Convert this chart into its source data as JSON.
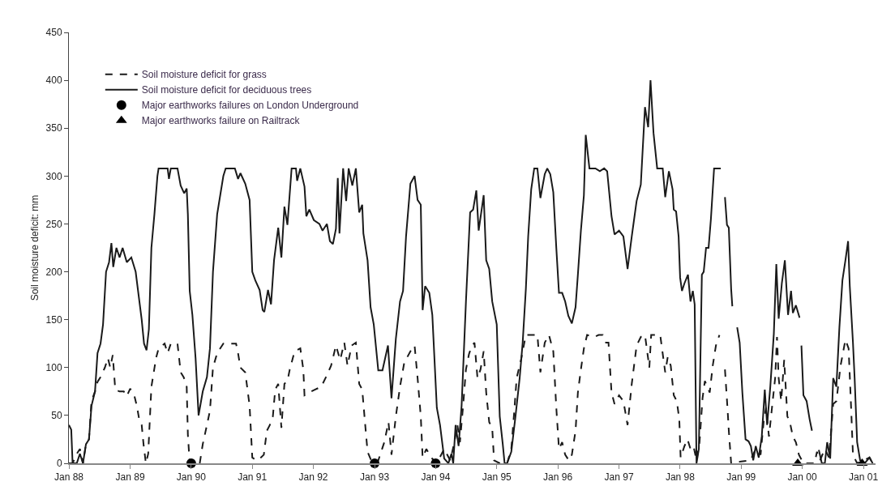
{
  "chart_data": {
    "type": "line",
    "ylabel": "Soil moisture deficit: mm",
    "xlim": [
      "1988-01-01",
      "2001-03-14"
    ],
    "ylim": [
      0,
      450
    ],
    "xticks": [
      {
        "value": "1988-01-01",
        "label": "Jan 88"
      },
      {
        "value": "1989-01-01",
        "label": "Jan 89"
      },
      {
        "value": "1990-01-01",
        "label": "Jan 90"
      },
      {
        "value": "1991-01-01",
        "label": "Jan 91"
      },
      {
        "value": "1992-01-01",
        "label": "Jan 92"
      },
      {
        "value": "1993-01-01",
        "label": "Jan 93"
      },
      {
        "value": "1994-01-01",
        "label": "Jan 94"
      },
      {
        "value": "1995-01-01",
        "label": "Jan 95"
      },
      {
        "value": "1996-01-01",
        "label": "Jan 96"
      },
      {
        "value": "1997-01-01",
        "label": "Jan 97"
      },
      {
        "value": "1998-01-01",
        "label": "Jan 98"
      },
      {
        "value": "1999-01-01",
        "label": "Jan 99"
      },
      {
        "value": "2000-01-01",
        "label": "Jan 00"
      },
      {
        "value": "2001-01-01",
        "label": "Jan 01"
      }
    ],
    "yticks": [
      0,
      50,
      100,
      150,
      200,
      250,
      300,
      350,
      400,
      450
    ],
    "grid": false,
    "legend": "top left",
    "series": [
      {
        "name": "Soil moisture deficit for grass",
        "color": "#1a1a1a",
        "line_style": "dashed",
        "marker": "none",
        "x": [
          "1988-01-01",
          "1988-01-23",
          "1988-02-17",
          "1988-03-07",
          "1988-03-25",
          "1988-04-12",
          "1988-04-30",
          "1988-05-15",
          "1988-06-05",
          "1988-06-20",
          "1988-07-08",
          "1988-08-03",
          "1988-08-21",
          "1988-09-04",
          "1988-09-19",
          "1988-10-04",
          "1988-10-30",
          "1988-11-24",
          "1988-12-12",
          "1989-01-01",
          "1989-01-27",
          "1989-02-10",
          "1989-02-25",
          "1989-03-11",
          "1989-03-22",
          "1989-04-05",
          "1989-04-19",
          "1989-05-08",
          "1989-05-22",
          "1989-06-05",
          "1989-06-20",
          "1989-07-26",
          "1989-08-13",
          "1989-09-01",
          "1989-10-11",
          "1989-10-30",
          "1989-11-17",
          "1989-12-05",
          "1989-12-12",
          "1989-12-23",
          "1990-02-21",
          "1990-03-11",
          "1990-04-05",
          "1990-04-23",
          "1990-05-11",
          "1990-06-05",
          "1990-07-12",
          "1990-09-26",
          "1990-10-08",
          "1990-10-22",
          "1990-11-20",
          "1990-12-16",
          "1991-01-01",
          "1991-01-27",
          "1991-02-21",
          "1991-03-11",
          "1991-03-29",
          "1991-04-16",
          "1991-05-04",
          "1991-05-18",
          "1991-06-05",
          "1991-06-24",
          "1991-07-12",
          "1991-07-30",
          "1991-08-13",
          "1991-09-11",
          "1991-10-15",
          "1991-11-02",
          "1991-11-09",
          "1991-12-08",
          "1992-01-12",
          "1992-02-17",
          "1992-03-22",
          "1992-04-16",
          "1992-05-15",
          "1992-06-09",
          "1992-07-04",
          "1992-07-23",
          "1992-08-17",
          "1992-09-11",
          "1992-10-01",
          "1992-10-19",
          "1992-11-06",
          "1992-11-20",
          "1992-12-19",
          "1993-01-23",
          "1993-02-28",
          "1993-03-25",
          "1993-04-12",
          "1993-05-08",
          "1993-06-02",
          "1993-06-27",
          "1993-08-03",
          "1993-08-28",
          "1993-09-15",
          "1993-10-04",
          "1993-10-15",
          "1993-11-06",
          "1993-12-05",
          "1994-01-08",
          "1994-02-21",
          "1994-03-29",
          "1994-04-23",
          "1994-05-11",
          "1994-05-26",
          "1994-06-13",
          "1994-07-01",
          "1994-07-19",
          "1994-08-06",
          "1994-08-21",
          "1994-09-08",
          "1994-09-26",
          "1994-10-15",
          "1994-10-30",
          "1994-11-17",
          "1994-12-05",
          "1994-12-16",
          "1995-01-19",
          "1995-03-04",
          "1995-03-29",
          "1995-04-16",
          "1995-04-30",
          "1995-05-26",
          "1995-06-24",
          "1995-07-26",
          "1995-09-01",
          "1995-09-19",
          "1995-10-15",
          "1995-11-09",
          "1995-12-05",
          "1995-12-23",
          "1996-01-08",
          "1996-01-27",
          "1996-02-14",
          "1996-03-07",
          "1996-03-25",
          "1996-04-16",
          "1996-04-30",
          "1996-05-18",
          "1996-06-05",
          "1996-06-24",
          "1996-08-06",
          "1996-09-01",
          "1996-09-26",
          "1996-10-15",
          "1996-10-30",
          "1996-11-17",
          "1996-12-05",
          "1997-01-01",
          "1997-01-27",
          "1997-02-21",
          "1997-03-18",
          "1997-04-16",
          "1997-05-11",
          "1997-06-05",
          "1997-07-01",
          "1997-07-12",
          "1997-09-04",
          "1997-10-04",
          "1997-10-19",
          "1997-11-06",
          "1997-11-24",
          "1997-12-12",
          "1997-12-27",
          "1998-01-04",
          "1998-01-27",
          "1998-02-14",
          "1998-03-04",
          "1998-03-22",
          "1998-04-09",
          "1998-04-27",
          "1998-05-15",
          "1998-05-29",
          "1998-06-27",
          "1998-07-15",
          "1998-08-03",
          "1998-08-24",
          "1998-09-10",
          "1998-09-26",
          "1998-10-11",
          "1998-10-19",
          "1998-11-02",
          "1999-01-01",
          "1999-02-25",
          "1999-03-29",
          "1999-04-27",
          "1999-05-15",
          "1999-05-29",
          "1999-06-16",
          "1999-07-04",
          "1999-07-23",
          "1999-08-03",
          "1999-08-13",
          "1999-08-28",
          "1999-09-15",
          "1999-10-04",
          "1999-10-19",
          "1999-11-06",
          "1999-11-24",
          "1999-12-12",
          "2000-01-08",
          "2000-03-14",
          "2000-03-29",
          "2000-04-16",
          "2000-05-15",
          "2000-06-09",
          "2000-07-04",
          "2000-07-23",
          "2000-08-17",
          "2000-09-15",
          "2000-10-04",
          "2000-10-19",
          "2000-10-30",
          "2000-11-24",
          "2001-01-01",
          "2001-02-06",
          "2001-02-25"
        ],
        "values": [
          0,
          0,
          10,
          15,
          0,
          20,
          25,
          65,
          75,
          85,
          90,
          100,
          110,
          100,
          113,
          77,
          75,
          75,
          70,
          78,
          70,
          60,
          45,
          40,
          20,
          0,
          10,
          80,
          95,
          110,
          120,
          125,
          115,
          125,
          125,
          95,
          90,
          80,
          30,
          0,
          0,
          20,
          40,
          55,
          100,
          115,
          125,
          125,
          115,
          100,
          95,
          60,
          6,
          3,
          6,
          9,
          34,
          40,
          49,
          77,
          83,
          37,
          83,
          86,
          98,
          117,
          120,
          98,
          71,
          74,
          77,
          80,
          92,
          102,
          123,
          108,
          126,
          102,
          123,
          126,
          83,
          77,
          40,
          12,
          0,
          3,
          22,
          43,
          9,
          49,
          80,
          105,
          117,
          123,
          89,
          49,
          6,
          15,
          6,
          0,
          15,
          3,
          22,
          40,
          22,
          58,
          98,
          114,
          123,
          126,
          89,
          98,
          117,
          74,
          43,
          37,
          3,
          0,
          0,
          15,
          55,
          89,
          108,
          134,
          134,
          134,
          95,
          126,
          134,
          117,
          58,
          15,
          22,
          9,
          3,
          9,
          34,
          74,
          98,
          120,
          134,
          132,
          134,
          134,
          126,
          126,
          74,
          62,
          71,
          65,
          40,
          83,
          123,
          132,
          134,
          100,
          134,
          134,
          95,
          111,
          102,
          71,
          65,
          46,
          6,
          18,
          25,
          15,
          18,
          3,
          22,
          68,
          86,
          74,
          102,
          123,
          134,
          null,
          98,
          58,
          34,
          0,
          2,
          3,
          15,
          9,
          43,
          58,
          28,
          58,
          89,
          132,
          89,
          65,
          108,
          49,
          43,
          28,
          22,
          9,
          0,
          0,
          12,
          3,
          15,
          6,
          62,
          65,
          102,
          129,
          120,
          58,
          9,
          0,
          3,
          6,
          0
        ]
      },
      {
        "name": "Soil moisture deficit for deciduous trees",
        "color": "#1a1a1a",
        "line_style": "solid",
        "marker": "none",
        "x": [
          "1988-01-01",
          "1988-01-15",
          "1988-01-23",
          "1988-02-17",
          "1988-03-07",
          "1988-03-25",
          "1988-04-12",
          "1988-04-30",
          "1988-05-15",
          "1988-06-05",
          "1988-06-20",
          "1988-07-08",
          "1988-07-23",
          "1988-08-10",
          "1988-08-28",
          "1988-09-11",
          "1988-09-22",
          "1988-10-11",
          "1988-10-30",
          "1988-11-17",
          "1988-12-12",
          "1989-01-08",
          "1989-02-03",
          "1989-02-21",
          "1989-03-11",
          "1989-03-25",
          "1989-04-09",
          "1989-04-23",
          "1989-05-08",
          "1989-05-26",
          "1989-06-13",
          "1989-06-20",
          "1989-08-13",
          "1989-08-21",
          "1989-09-01",
          "1989-10-11",
          "1989-10-30",
          "1989-11-20",
          "1989-12-05",
          "1989-12-12",
          "1989-12-23",
          "1990-01-08",
          "1990-01-27",
          "1990-02-14",
          "1990-03-11",
          "1990-04-05",
          "1990-04-23",
          "1990-05-11",
          "1990-06-05",
          "1990-07-12",
          "1990-07-26",
          "1990-09-19",
          "1990-10-08",
          "1990-10-22",
          "1990-11-20",
          "1990-12-16",
          "1991-01-01",
          "1991-01-19",
          "1991-02-14",
          "1991-03-04",
          "1991-03-14",
          "1991-04-05",
          "1991-04-23",
          "1991-05-11",
          "1991-06-05",
          "1991-06-24",
          "1991-07-12",
          "1991-07-30",
          "1991-08-24",
          "1991-09-19",
          "1991-09-26",
          "1991-10-15",
          "1991-11-09",
          "1991-11-20",
          "1991-12-08",
          "1992-01-04",
          "1992-02-06",
          "1992-02-25",
          "1992-03-22",
          "1992-04-09",
          "1992-04-27",
          "1992-05-15",
          "1992-05-26",
          "1992-06-05",
          "1992-06-27",
          "1992-07-15",
          "1992-07-30",
          "1992-08-21",
          "1992-09-11",
          "1992-10-01",
          "1992-10-19",
          "1992-10-26",
          "1992-11-20",
          "1992-12-08",
          "1992-12-27",
          "1993-01-23",
          "1993-02-17",
          "1993-03-22",
          "1993-04-12",
          "1993-05-08",
          "1993-06-02",
          "1993-06-20",
          "1993-07-08",
          "1993-08-03",
          "1993-08-28",
          "1993-09-15",
          "1993-10-04",
          "1993-10-15",
          "1993-10-30",
          "1993-11-24",
          "1993-12-12",
          "1994-01-08",
          "1994-01-27",
          "1994-02-21",
          "1994-03-18",
          "1994-04-05",
          "1994-04-16",
          "1994-04-30",
          "1994-05-18",
          "1994-06-05",
          "1994-07-01",
          "1994-07-26",
          "1994-08-13",
          "1994-09-01",
          "1994-09-15",
          "1994-10-15",
          "1994-10-30",
          "1994-11-17",
          "1994-12-05",
          "1995-01-01",
          "1995-01-19",
          "1995-02-06",
          "1995-02-17",
          "1995-03-04",
          "1995-03-29",
          "1995-04-23",
          "1995-05-18",
          "1995-06-05",
          "1995-06-24",
          "1995-07-08",
          "1995-07-26",
          "1995-08-13",
          "1995-09-01",
          "1995-09-19",
          "1995-10-15",
          "1995-10-30",
          "1995-11-17",
          "1995-12-05",
          "1995-12-23",
          "1996-01-08",
          "1996-01-27",
          "1996-02-14",
          "1996-03-04",
          "1996-03-25",
          "1996-04-16",
          "1996-04-30",
          "1996-05-18",
          "1996-06-05",
          "1996-06-16",
          "1996-07-08",
          "1996-08-13",
          "1996-09-08",
          "1996-10-04",
          "1996-10-22",
          "1996-11-17",
          "1996-12-05",
          "1997-01-01",
          "1997-01-27",
          "1997-02-21",
          "1997-03-18",
          "1997-04-16",
          "1997-05-11",
          "1997-06-05",
          "1997-06-24",
          "1997-07-08",
          "1997-07-26",
          "1997-08-17",
          "1997-09-19",
          "1997-10-04",
          "1997-10-26",
          "1997-11-17",
          "1997-11-24",
          "1997-12-08",
          "1997-12-23",
          "1998-01-01",
          "1998-01-12",
          "1998-01-27",
          "1998-02-17",
          "1998-03-04",
          "1998-03-18",
          "1998-03-29",
          "1998-04-09",
          "1998-04-23",
          "1998-05-11",
          "1998-05-22",
          "1998-06-05",
          "1998-06-20",
          "1998-07-04",
          "1998-07-23",
          "1998-09-01",
          "1998-09-10",
          "1998-09-26",
          "1998-10-08",
          "1998-10-19",
          "1998-11-02",
          "1998-11-09",
          "1998-11-20",
          "1998-12-08",
          "1998-12-23",
          "1999-01-08",
          "1999-01-27",
          "1999-02-14",
          "1999-02-28",
          "1999-03-14",
          "1999-03-29",
          "1999-04-16",
          "1999-05-04",
          "1999-05-22",
          "1999-06-05",
          "1999-06-24",
          "1999-07-15",
          "1999-07-30",
          "1999-08-13",
          "1999-09-01",
          "1999-09-19",
          "1999-10-08",
          "1999-10-26",
          "1999-11-06",
          "1999-11-24",
          "1999-12-16",
          "1999-12-20",
          "1999-12-27",
          "2000-01-08",
          "2000-01-27",
          "2000-02-14",
          "2000-02-28",
          "2000-03-10",
          "2000-04-09",
          "2000-04-27",
          "2000-05-15",
          "2000-05-29",
          "2000-06-16",
          "2000-07-04",
          "2000-07-23",
          "2000-08-10",
          "2000-08-28",
          "2000-09-15",
          "2000-10-01",
          "2000-10-11",
          "2000-10-30",
          "2000-11-09",
          "2000-11-24",
          "2000-12-12",
          "2001-01-08",
          "2001-02-06",
          "2001-02-25"
        ],
        "values": [
          40,
          35,
          0,
          0,
          10,
          0,
          20,
          25,
          60,
          75,
          115,
          125,
          145,
          200,
          210,
          230,
          205,
          225,
          215,
          225,
          210,
          215,
          200,
          175,
          150,
          125,
          118,
          140,
          225,
          260,
          300,
          308,
          308,
          297,
          308,
          308,
          290,
          282,
          287,
          260,
          180,
          155,
          110,
          50,
          75,
          90,
          120,
          200,
          260,
          300,
          308,
          308,
          297,
          303,
          292,
          275,
          200,
          191,
          181,
          160,
          158,
          181,
          166,
          212,
          246,
          215,
          268,
          249,
          308,
          308,
          295,
          308,
          289,
          258,
          265,
          254,
          250,
          243,
          250,
          232,
          229,
          245,
          298,
          240,
          308,
          274,
          308,
          290,
          308,
          262,
          270,
          240,
          212,
          163,
          145,
          97,
          97,
          123,
          68,
          130,
          169,
          180,
          237,
          292,
          300,
          275,
          270,
          160,
          185,
          178,
          155,
          58,
          40,
          5,
          0,
          10,
          0,
          40,
          18,
          60,
          169,
          262,
          265,
          285,
          243,
          280,
          212,
          203,
          169,
          145,
          49,
          20,
          0,
          0,
          12,
          49,
          89,
          126,
          182,
          237,
          286,
          308,
          308,
          277,
          302,
          308,
          302,
          283,
          225,
          178,
          178,
          169,
          154,
          146,
          163,
          197,
          243,
          280,
          343,
          308,
          308,
          305,
          308,
          305,
          258,
          239,
          243,
          237,
          203,
          237,
          274,
          291,
          372,
          351,
          400,
          345,
          308,
          308,
          278,
          305,
          286,
          265,
          263,
          237,
          194,
          180,
          188,
          197,
          169,
          180,
          166,
          0,
          15,
          197,
          200,
          225,
          225,
          255,
          308,
          308,
          null,
          278,
          249,
          246,
          182,
          164,
          null,
          142,
          126,
          74,
          25,
          23,
          18,
          3,
          18,
          6,
          28,
          77,
          40,
          80,
          135,
          208,
          151,
          188,
          212,
          155,
          180,
          157,
          165,
          152,
          null,
          123,
          71,
          65,
          46,
          34,
          null,
          14,
          0,
          0,
          22,
          5,
          89,
          80,
          142,
          191,
          212,
          232,
          185,
          126,
          89,
          22,
          3,
          0,
          6,
          0
        ]
      },
      {
        "name": "Major earthworks failures on London Underground",
        "color": "#000000",
        "type": "scatter",
        "marker": "circle",
        "x": [
          "1990-01-01",
          "1993-01-01",
          "1994-01-01"
        ],
        "values": [
          0,
          0,
          0
        ]
      },
      {
        "name": "Major earthworks failure on Railtrack",
        "color": "#000000",
        "type": "scatter",
        "marker": "triangle",
        "x": [
          "1999-12-05",
          "2000-12-24"
        ],
        "values": [
          0,
          0
        ]
      }
    ]
  }
}
